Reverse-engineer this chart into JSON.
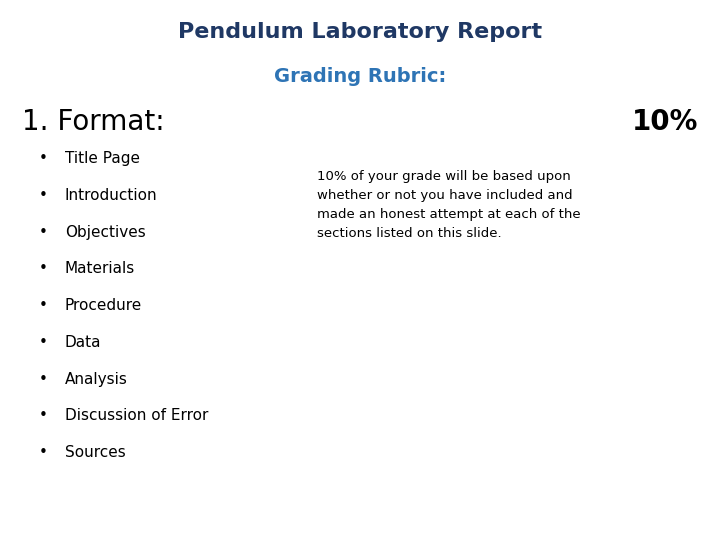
{
  "title": "Pendulum Laboratory Report",
  "subtitle": "Grading Rubric:",
  "section_label": "1. Format:",
  "section_percent": "10%",
  "bullet_items": [
    "Title Page",
    "Introduction",
    "Objectives",
    "Materials",
    "Procedure",
    "Data",
    "Analysis",
    "Discussion of Error",
    "Sources"
  ],
  "note_text": "10% of your grade will be based upon\nwhether or not you have included and\nmade an honest attempt at each of the\nsections listed on this slide.",
  "bg_color": "#ffffff",
  "title_color": "#1F3864",
  "subtitle_color": "#2E74B5",
  "section_color": "#000000",
  "bullet_color": "#000000",
  "note_color": "#000000",
  "title_fontsize": 16,
  "subtitle_fontsize": 14,
  "section_fontsize": 20,
  "percent_fontsize": 20,
  "bullet_fontsize": 11,
  "note_fontsize": 9.5
}
